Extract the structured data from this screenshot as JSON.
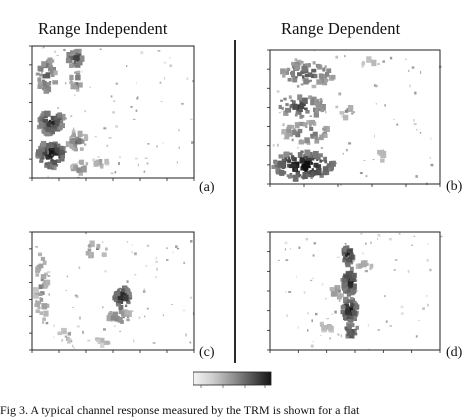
{
  "figure": {
    "columns": [
      {
        "title": "Range Independent"
      },
      {
        "title": "Range Dependent"
      }
    ],
    "panels": [
      {
        "label": "(a)"
      },
      {
        "label": "(b)"
      },
      {
        "label": "(c)"
      },
      {
        "label": "(d)"
      }
    ],
    "colorbar": {
      "scale": "gray, light to dark"
    },
    "caption": "Fig 3. A typical channel response measured by the TRM is shown for a flat"
  }
}
